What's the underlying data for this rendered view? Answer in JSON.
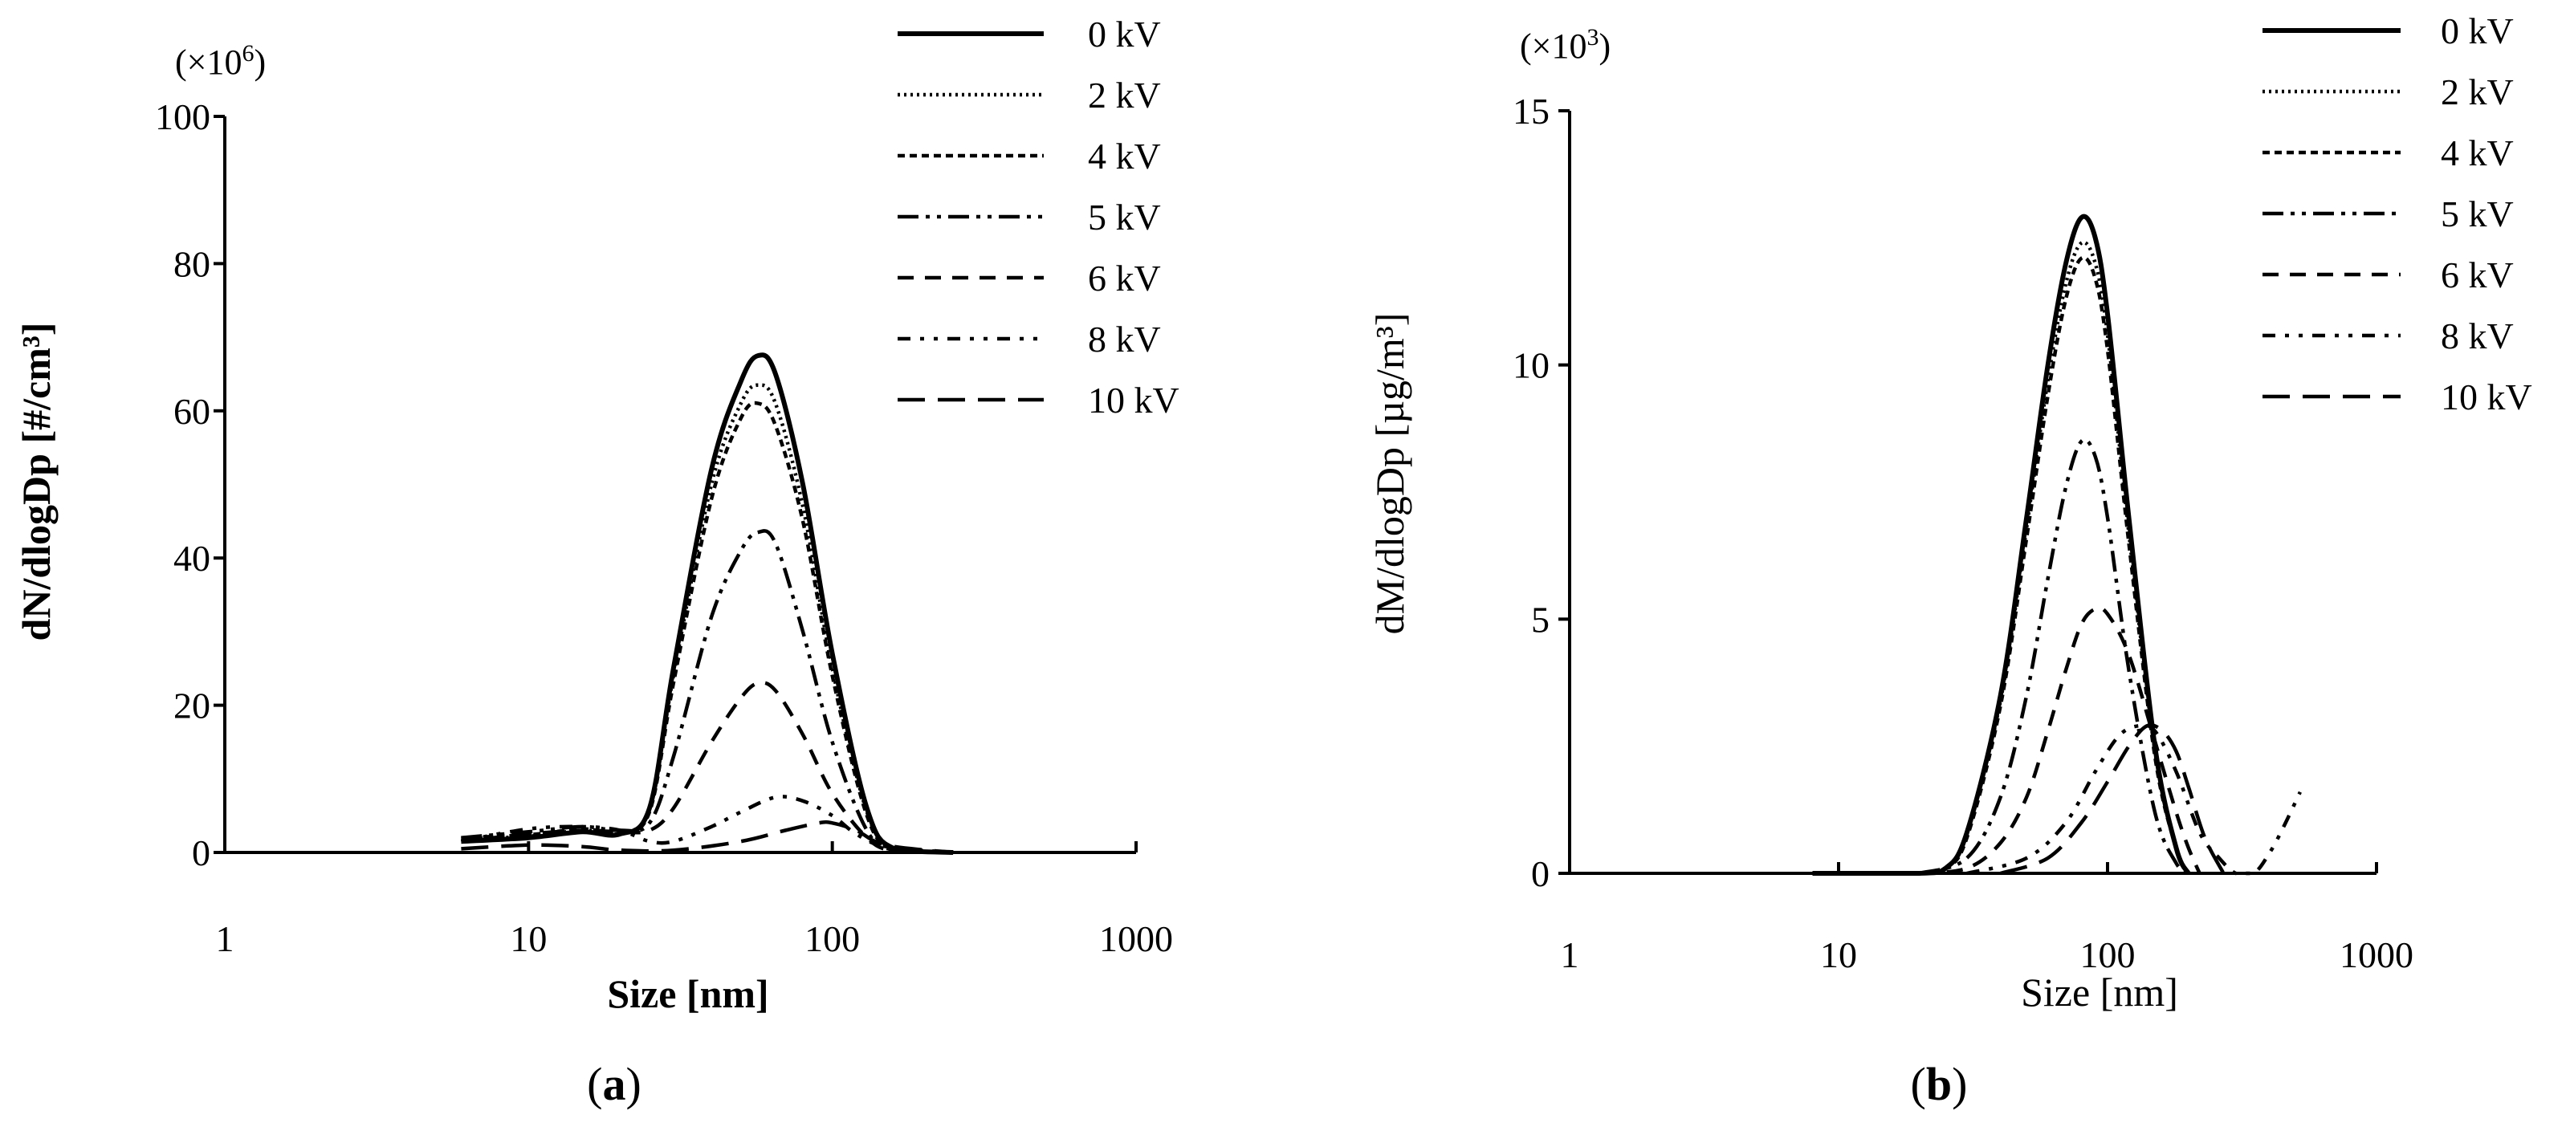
{
  "chart_data": [
    {
      "type": "line",
      "panel_label": "a",
      "xlabel": "Size [nm]",
      "ylabel": "dN/dlogDp [#/cm³]",
      "multiplier_prefix": "(×10",
      "multiplier_exp": "6",
      "multiplier_suffix": ")",
      "xscale": "log",
      "xlim": [
        1,
        1000
      ],
      "ylim": [
        0,
        100
      ],
      "x_ticks": [
        1,
        10,
        100,
        1000
      ],
      "x_tick_labels": [
        "1",
        "10",
        "100",
        "1000"
      ],
      "y_ticks": [
        0,
        20,
        40,
        60,
        80,
        100
      ],
      "y_tick_labels": [
        "0",
        "20",
        "40",
        "60",
        "80",
        "100"
      ],
      "legend_position": "top-right",
      "series": [
        {
          "name": "0 kV",
          "dash": "solid",
          "x": [
            6,
            10,
            15,
            20,
            25,
            30,
            40,
            50,
            57,
            65,
            80,
            100,
            130,
            160,
            250
          ],
          "y": [
            1.5,
            2.0,
            2.8,
            2.5,
            6,
            25,
            52,
            64,
            67.5,
            65,
            50,
            27,
            6,
            0.5,
            0
          ]
        },
        {
          "name": "2 kV",
          "dash": "dotted",
          "x": [
            6,
            10,
            15,
            20,
            25,
            30,
            40,
            50,
            57,
            65,
            80,
            100,
            130,
            160,
            250
          ],
          "y": [
            1.8,
            2.2,
            3.0,
            2.6,
            6,
            24,
            50,
            61,
            63.5,
            61,
            47,
            25,
            5.5,
            0.5,
            0
          ]
        },
        {
          "name": "4 kV",
          "dash": "short-dash",
          "x": [
            6,
            10,
            15,
            20,
            25,
            30,
            40,
            50,
            57,
            65,
            80,
            100,
            130,
            160,
            250
          ],
          "y": [
            2.0,
            2.4,
            3.2,
            2.7,
            5.5,
            23,
            48,
            59,
            61,
            58,
            45,
            24,
            5,
            0.5,
            0
          ]
        },
        {
          "name": "5 kV",
          "dash": "dash-dot-dot",
          "x": [
            6,
            10,
            15,
            20,
            25,
            30,
            40,
            50,
            57,
            65,
            80,
            100,
            130,
            160,
            250
          ],
          "y": [
            2.0,
            2.8,
            3.5,
            3.0,
            4,
            13,
            32,
            41,
            43.5,
            42,
            30,
            15,
            3,
            0.3,
            0
          ]
        },
        {
          "name": "6 kV",
          "dash": "dash",
          "x": [
            6,
            10,
            15,
            20,
            25,
            30,
            40,
            50,
            57,
            65,
            80,
            100,
            130,
            160,
            250
          ],
          "y": [
            1.5,
            2.5,
            3.0,
            2.8,
            3,
            6,
            15,
            21,
            23,
            22,
            16,
            8,
            2,
            0.2,
            0
          ]
        },
        {
          "name": "8 kV",
          "dash": "dash-dot-dot-spaced",
          "x": [
            6,
            10,
            15,
            20,
            25,
            30,
            40,
            50,
            65,
            80,
            100,
            120,
            150,
            250
          ],
          "y": [
            1.5,
            3.2,
            3.5,
            3.0,
            1.5,
            1.5,
            3.5,
            5.5,
            7.5,
            7.0,
            5.0,
            2.5,
            0.8,
            0
          ]
        },
        {
          "name": "10 kV",
          "dash": "long-dash",
          "x": [
            6,
            10,
            15,
            20,
            30,
            50,
            70,
            90,
            100,
            120,
            150,
            250
          ],
          "y": [
            0.5,
            1.0,
            0.8,
            0.3,
            0.3,
            1.5,
            3.0,
            4.0,
            4.0,
            3.0,
            1.0,
            0
          ]
        }
      ]
    },
    {
      "type": "line",
      "panel_label": "b",
      "xlabel": "Size [nm]",
      "ylabel": "dM/dlogDp [µg/m³]",
      "multiplier_prefix": "(×10",
      "multiplier_exp": "3",
      "multiplier_suffix": ")",
      "xscale": "log",
      "xlim": [
        1,
        1000
      ],
      "ylim": [
        0,
        15
      ],
      "x_ticks": [
        1,
        10,
        100,
        1000
      ],
      "x_tick_labels": [
        "1",
        "10",
        "100",
        "1000"
      ],
      "y_ticks": [
        0,
        5,
        10,
        15
      ],
      "y_tick_labels": [
        "0",
        "5",
        "10",
        "15"
      ],
      "legend_position": "top-right",
      "series": [
        {
          "name": "0 kV",
          "dash": "solid",
          "x": [
            8,
            20,
            25,
            30,
            40,
            50,
            60,
            70,
            80,
            90,
            100,
            120,
            150,
            180,
            200
          ],
          "y": [
            0,
            0,
            0.1,
            0.8,
            3.5,
            7.0,
            10.0,
            12.0,
            12.9,
            12.5,
            11.0,
            7.0,
            2.5,
            0.5,
            0
          ]
        },
        {
          "name": "2 kV",
          "dash": "dotted",
          "x": [
            8,
            20,
            25,
            30,
            40,
            50,
            60,
            70,
            80,
            90,
            100,
            120,
            150,
            180,
            200
          ],
          "y": [
            0,
            0,
            0.1,
            0.8,
            3.4,
            6.8,
            9.7,
            11.6,
            12.4,
            12.0,
            10.6,
            6.7,
            2.4,
            0.5,
            0
          ]
        },
        {
          "name": "4 kV",
          "dash": "short-dash",
          "x": [
            8,
            20,
            25,
            30,
            40,
            50,
            60,
            70,
            80,
            90,
            100,
            120,
            150,
            180,
            200
          ],
          "y": [
            0,
            0,
            0.1,
            0.7,
            3.3,
            6.6,
            9.4,
            11.3,
            12.1,
            11.7,
            10.3,
            6.5,
            2.3,
            0.5,
            0
          ]
        },
        {
          "name": "5 kV",
          "dash": "dash-dot-dot",
          "x": [
            20,
            30,
            40,
            50,
            60,
            70,
            80,
            90,
            100,
            120,
            150,
            180,
            200
          ],
          "y": [
            0,
            0.3,
            1.5,
            3.5,
            5.8,
            7.6,
            8.5,
            8.2,
            7.0,
            4.0,
            1.2,
            0.2,
            0
          ]
        },
        {
          "name": "6 kV",
          "dash": "dash",
          "x": [
            20,
            30,
            40,
            50,
            60,
            70,
            80,
            90,
            100,
            120,
            150,
            180,
            200,
            220
          ],
          "y": [
            0,
            0.1,
            0.6,
            1.5,
            2.8,
            4.0,
            4.9,
            5.2,
            5.1,
            4.3,
            2.6,
            1.2,
            0.5,
            0
          ]
        },
        {
          "name": "8 kV",
          "dash": "dash-dot-dot-spaced",
          "x": [
            30,
            50,
            70,
            90,
            110,
            130,
            150,
            180,
            220,
            260,
            300,
            350,
            400,
            450,
            520
          ],
          "y": [
            0,
            0.3,
            1.0,
            2.0,
            2.7,
            2.9,
            2.8,
            2.0,
            0.8,
            0.3,
            0,
            0,
            0.4,
            0.9,
            1.6
          ]
        },
        {
          "name": "10 kV",
          "dash": "long-dash",
          "x": [
            40,
            60,
            80,
            100,
            120,
            140,
            160,
            180,
            200,
            230,
            270
          ],
          "y": [
            0,
            0.3,
            1.0,
            1.8,
            2.5,
            2.9,
            2.8,
            2.4,
            1.7,
            0.7,
            0
          ]
        }
      ]
    }
  ]
}
